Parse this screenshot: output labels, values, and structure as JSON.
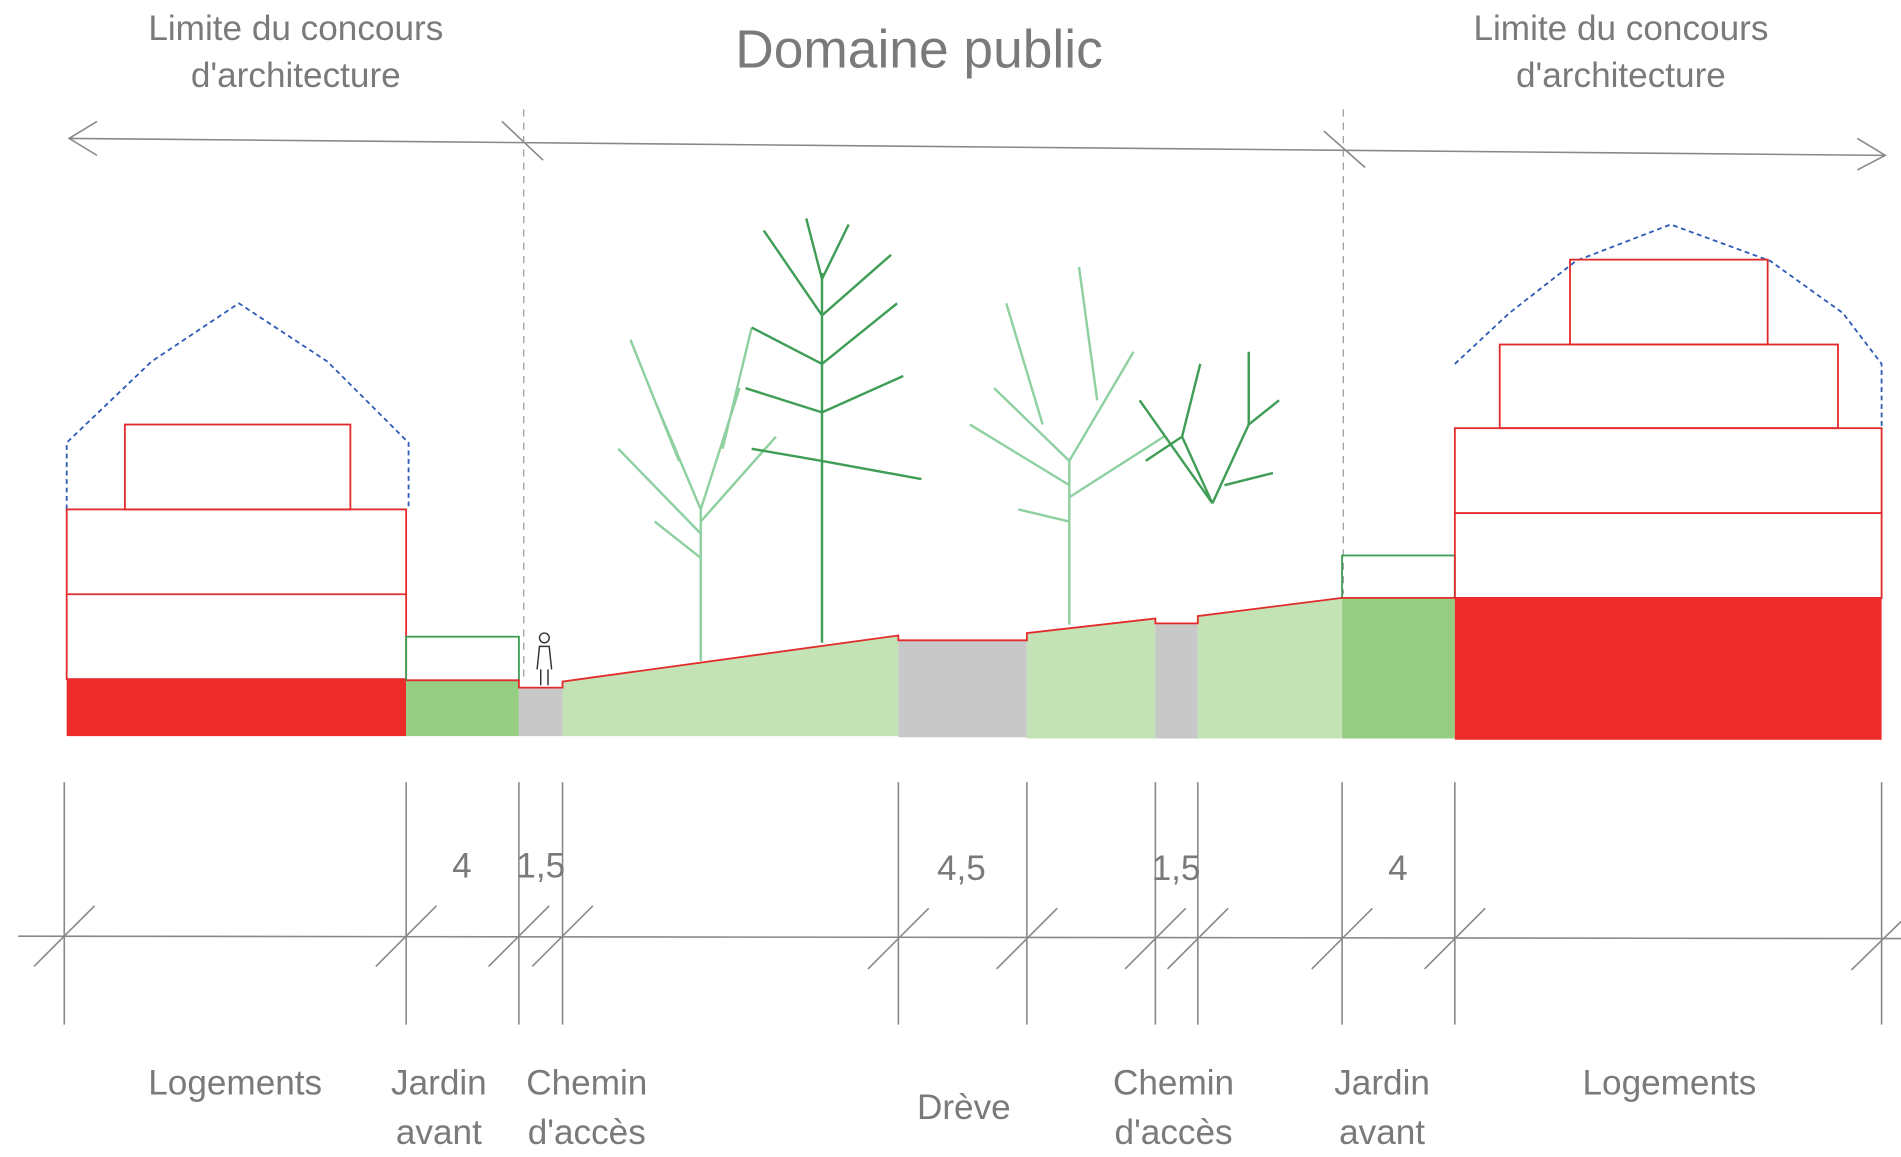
{
  "title": "Domaine public",
  "limits": [
    {
      "lines": [
        "Limite du concours",
        "d'architecture"
      ]
    },
    {
      "lines": [
        "Limite du concours",
        "d'architecture"
      ]
    }
  ],
  "dimensions": [
    "4",
    "1,5",
    "4,5",
    "1,5",
    "4"
  ],
  "zones": [
    {
      "lines": [
        "Logements"
      ]
    },
    {
      "lines": [
        "Jardin",
        "avant"
      ]
    },
    {
      "lines": [
        "Chemin",
        "d'accès"
      ]
    },
    {
      "lines": [
        "Drève"
      ]
    },
    {
      "lines": [
        "Chemin",
        "d'accès"
      ]
    },
    {
      "lines": [
        "Jardin",
        "avant"
      ]
    },
    {
      "lines": [
        "Logements"
      ]
    }
  ]
}
